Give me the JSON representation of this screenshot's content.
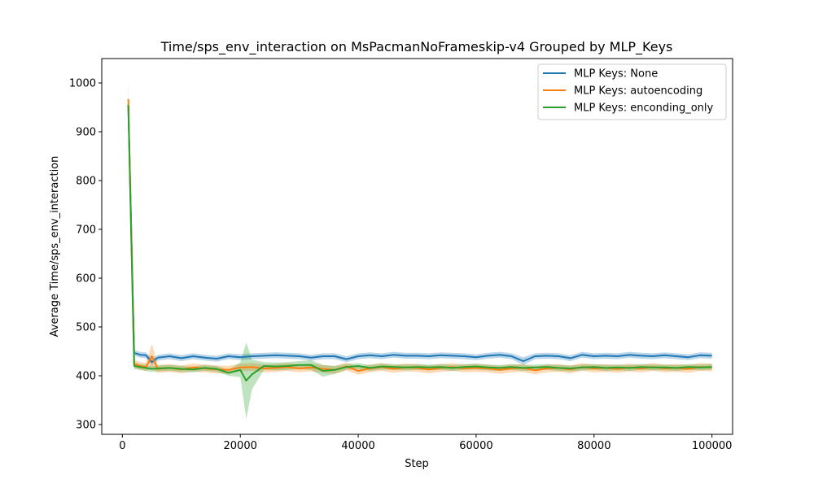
{
  "chart_data": {
    "type": "line",
    "title": "Time/sps_env_interaction on MsPacmanNoFrameskip-v4 Grouped by MLP_Keys",
    "xlabel": "Step",
    "ylabel": "Average Time/sps_env_interaction",
    "xlim": [
      -3500,
      103500
    ],
    "ylim": [
      280,
      1050
    ],
    "x_ticks": [
      0,
      20000,
      40000,
      60000,
      80000,
      100000
    ],
    "y_ticks": [
      300,
      400,
      500,
      600,
      700,
      800,
      900,
      1000
    ],
    "grid": false,
    "legend_position": "top-right",
    "series": [
      {
        "name": "MLP Keys: None",
        "color": "#1f77b4",
        "x": [
          1000,
          2000,
          3000,
          4000,
          5000,
          6000,
          8000,
          10000,
          12000,
          14000,
          16000,
          18000,
          20000,
          22000,
          24000,
          26000,
          28000,
          30000,
          32000,
          34000,
          36000,
          38000,
          40000,
          42000,
          44000,
          46000,
          48000,
          50000,
          52000,
          54000,
          56000,
          58000,
          60000,
          62000,
          64000,
          66000,
          68000,
          70000,
          72000,
          74000,
          76000,
          78000,
          80000,
          82000,
          84000,
          86000,
          88000,
          90000,
          92000,
          94000,
          96000,
          98000,
          100000
        ],
        "values": [
          955,
          447,
          443,
          442,
          428,
          437,
          440,
          436,
          440,
          437,
          435,
          440,
          438,
          440,
          441,
          442,
          441,
          440,
          437,
          440,
          440,
          434,
          440,
          442,
          440,
          443,
          441,
          441,
          440,
          442,
          441,
          440,
          438,
          441,
          443,
          440,
          430,
          440,
          441,
          440,
          436,
          443,
          440,
          441,
          440,
          443,
          441,
          440,
          442,
          440,
          438,
          442,
          441
        ],
        "band": [
          10,
          6,
          6,
          6,
          8,
          6,
          6,
          6,
          6,
          6,
          6,
          6,
          6,
          6,
          6,
          6,
          6,
          6,
          6,
          6,
          6,
          6,
          6,
          6,
          6,
          6,
          6,
          6,
          6,
          6,
          6,
          6,
          6,
          6,
          6,
          6,
          8,
          6,
          6,
          6,
          6,
          6,
          6,
          6,
          6,
          6,
          6,
          6,
          6,
          6,
          6,
          6,
          6
        ]
      },
      {
        "name": "MLP Keys: autoencoding",
        "color": "#ff7f0e",
        "x": [
          1000,
          2000,
          3000,
          4000,
          5000,
          6000,
          8000,
          10000,
          12000,
          14000,
          16000,
          18000,
          20000,
          22000,
          24000,
          26000,
          28000,
          30000,
          32000,
          34000,
          36000,
          38000,
          40000,
          42000,
          44000,
          46000,
          48000,
          50000,
          52000,
          54000,
          56000,
          58000,
          60000,
          62000,
          64000,
          66000,
          68000,
          70000,
          72000,
          74000,
          76000,
          78000,
          80000,
          82000,
          84000,
          86000,
          88000,
          90000,
          92000,
          94000,
          96000,
          98000,
          100000
        ],
        "values": [
          967,
          425,
          420,
          418,
          440,
          414,
          416,
          413,
          417,
          415,
          413,
          412,
          417,
          418,
          415,
          416,
          418,
          415,
          417,
          414,
          412,
          419,
          410,
          415,
          418,
          414,
          417,
          416,
          413,
          416,
          418,
          415,
          416,
          415,
          412,
          415,
          416,
          411,
          415,
          416,
          413,
          418,
          415,
          416,
          414,
          417,
          415,
          418,
          415,
          416,
          414,
          418,
          417
        ],
        "band": [
          40,
          8,
          8,
          8,
          25,
          8,
          8,
          8,
          8,
          8,
          8,
          8,
          8,
          8,
          8,
          8,
          8,
          8,
          8,
          8,
          8,
          8,
          8,
          8,
          8,
          8,
          8,
          8,
          8,
          8,
          8,
          8,
          8,
          8,
          8,
          8,
          8,
          8,
          8,
          8,
          8,
          8,
          8,
          8,
          8,
          8,
          8,
          8,
          8,
          8,
          8,
          8,
          8
        ]
      },
      {
        "name": "MLP Keys: enconding_only",
        "color": "#2ca02c",
        "x": [
          1000,
          2000,
          3000,
          4000,
          5000,
          6000,
          8000,
          10000,
          12000,
          14000,
          16000,
          18000,
          20000,
          21000,
          22000,
          24000,
          26000,
          28000,
          30000,
          32000,
          34000,
          36000,
          38000,
          40000,
          42000,
          44000,
          46000,
          48000,
          50000,
          52000,
          54000,
          56000,
          58000,
          60000,
          62000,
          64000,
          66000,
          68000,
          70000,
          72000,
          74000,
          76000,
          78000,
          80000,
          82000,
          84000,
          86000,
          88000,
          90000,
          92000,
          94000,
          96000,
          98000,
          100000
        ],
        "values": [
          955,
          420,
          418,
          416,
          414,
          415,
          416,
          414,
          413,
          416,
          414,
          406,
          412,
          390,
          403,
          420,
          419,
          420,
          422,
          422,
          410,
          412,
          418,
          420,
          416,
          419,
          418,
          417,
          418,
          417,
          418,
          416,
          418,
          419,
          417,
          416,
          418,
          416,
          417,
          418,
          416,
          415,
          417,
          418,
          416,
          417,
          416,
          418,
          417,
          417,
          416,
          418,
          417,
          418
        ],
        "band": [
          10,
          6,
          6,
          6,
          6,
          6,
          6,
          6,
          6,
          6,
          6,
          6,
          15,
          78,
          30,
          8,
          8,
          8,
          8,
          10,
          12,
          8,
          6,
          6,
          6,
          6,
          6,
          6,
          6,
          6,
          6,
          6,
          6,
          6,
          6,
          6,
          6,
          6,
          6,
          6,
          6,
          6,
          6,
          6,
          6,
          6,
          6,
          6,
          6,
          6,
          6,
          6,
          6,
          6
        ]
      }
    ]
  }
}
